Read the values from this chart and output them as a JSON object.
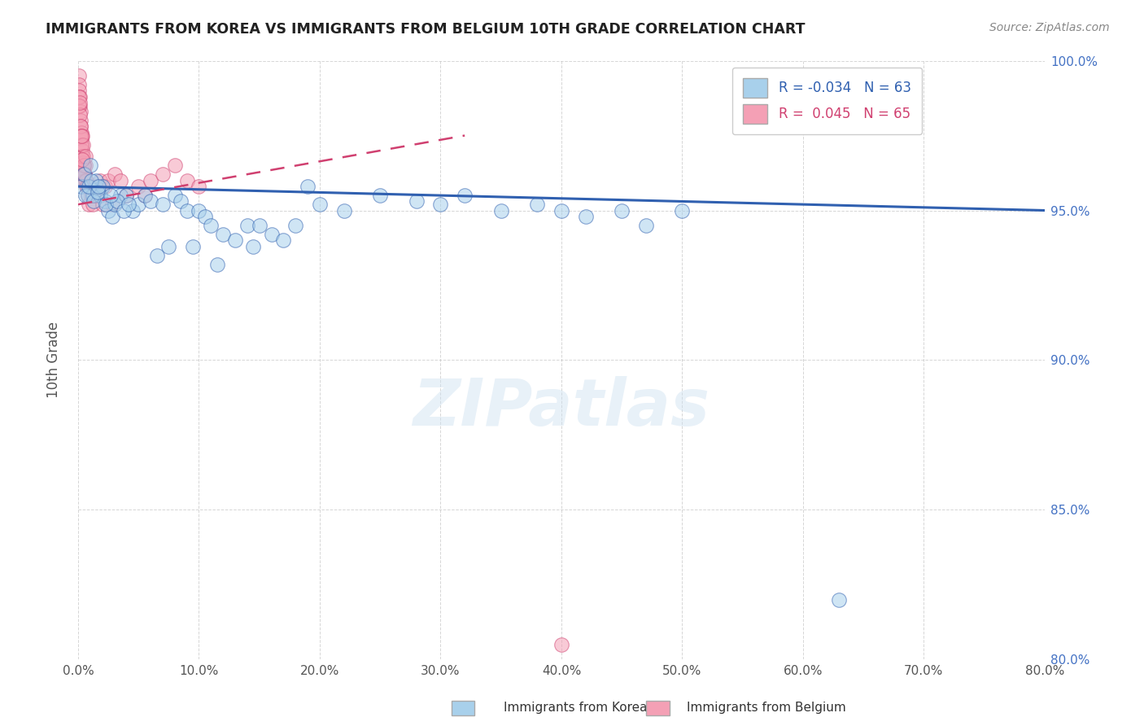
{
  "title": "IMMIGRANTS FROM KOREA VS IMMIGRANTS FROM BELGIUM 10TH GRADE CORRELATION CHART",
  "source": "Source: ZipAtlas.com",
  "xlabel_korea": "Immigrants from Korea",
  "xlabel_belgium": "Immigrants from Belgium",
  "ylabel": "10th Grade",
  "r_korea": -0.034,
  "n_korea": 63,
  "r_belgium": 0.045,
  "n_belgium": 65,
  "xlim": [
    0.0,
    80.0
  ],
  "ylim": [
    80.0,
    100.0
  ],
  "color_korea": "#a8d0eb",
  "color_belgium": "#f4a0b5",
  "trendline_korea": "#3060b0",
  "trendline_belgium": "#d04070",
  "korea_x": [
    0.3,
    0.5,
    0.8,
    1.0,
    1.2,
    1.5,
    1.8,
    2.0,
    2.2,
    2.5,
    2.8,
    3.0,
    3.5,
    4.0,
    4.5,
    5.0,
    5.5,
    6.0,
    7.0,
    8.0,
    8.5,
    9.0,
    10.0,
    10.5,
    11.0,
    12.0,
    13.0,
    14.0,
    15.0,
    16.0,
    17.0,
    18.0,
    20.0,
    22.0,
    25.0,
    28.0,
    30.0,
    32.0,
    35.0,
    38.0,
    40.0,
    42.0,
    45.0,
    47.0,
    50.0,
    0.6,
    0.9,
    1.3,
    1.6,
    2.3,
    3.2,
    6.5,
    7.5,
    19.0,
    3.8,
    4.2,
    9.5,
    11.5,
    14.5,
    63.0,
    1.1,
    1.7,
    2.7
  ],
  "korea_y": [
    95.8,
    96.2,
    95.5,
    96.5,
    95.5,
    96.0,
    95.5,
    95.8,
    95.3,
    95.0,
    94.8,
    95.2,
    95.5,
    95.5,
    95.0,
    95.2,
    95.5,
    95.3,
    95.2,
    95.5,
    95.3,
    95.0,
    95.0,
    94.8,
    94.5,
    94.2,
    94.0,
    94.5,
    94.5,
    94.2,
    94.0,
    94.5,
    95.2,
    95.0,
    95.5,
    95.3,
    95.2,
    95.5,
    95.0,
    95.2,
    95.0,
    94.8,
    95.0,
    94.5,
    95.0,
    95.5,
    95.8,
    95.3,
    95.6,
    95.2,
    95.3,
    93.5,
    93.8,
    95.8,
    95.0,
    95.2,
    93.8,
    93.2,
    93.8,
    82.0,
    96.0,
    95.8,
    95.5
  ],
  "belgium_x": [
    0.05,
    0.08,
    0.1,
    0.12,
    0.15,
    0.18,
    0.2,
    0.22,
    0.25,
    0.28,
    0.3,
    0.32,
    0.35,
    0.38,
    0.4,
    0.42,
    0.45,
    0.5,
    0.55,
    0.6,
    0.65,
    0.7,
    0.8,
    0.9,
    1.0,
    1.1,
    1.2,
    1.3,
    1.5,
    1.6,
    1.8,
    2.0,
    2.2,
    2.5,
    3.0,
    3.5,
    4.0,
    5.0,
    6.0,
    7.0,
    8.0,
    9.0,
    10.0,
    0.05,
    0.08,
    0.12,
    0.18,
    0.28,
    0.38,
    0.48,
    0.58,
    0.75,
    0.22,
    0.32,
    0.42,
    0.62,
    40.0,
    0.15,
    0.25,
    0.35,
    1.4,
    2.8,
    5.5,
    0.52,
    0.72
  ],
  "belgium_y": [
    99.5,
    99.2,
    99.0,
    98.8,
    98.5,
    98.3,
    98.0,
    97.8,
    97.6,
    97.4,
    97.2,
    97.0,
    96.8,
    96.6,
    96.4,
    96.2,
    96.0,
    96.5,
    96.2,
    96.5,
    96.0,
    95.8,
    95.5,
    95.2,
    95.8,
    95.5,
    95.2,
    95.5,
    95.8,
    95.5,
    96.0,
    95.2,
    95.8,
    96.0,
    96.2,
    96.0,
    95.5,
    95.8,
    96.0,
    96.2,
    96.5,
    96.0,
    95.8,
    98.8,
    98.5,
    98.2,
    97.5,
    97.2,
    96.8,
    96.5,
    96.0,
    95.8,
    97.8,
    97.5,
    97.2,
    96.8,
    80.5,
    98.6,
    97.5,
    96.7,
    95.5,
    95.2,
    95.5,
    96.2,
    95.8
  ],
  "korea_trend_y0": 95.8,
  "korea_trend_y1": 95.0,
  "belgium_trend_y0": 95.2,
  "belgium_trend_y1": 97.5,
  "belgium_trend_x0": 0.0,
  "belgium_trend_x1": 32.0,
  "y_ticks": [
    80,
    85,
    90,
    95,
    100
  ],
  "x_ticks": [
    0,
    10,
    20,
    30,
    40,
    50,
    60,
    70,
    80
  ]
}
